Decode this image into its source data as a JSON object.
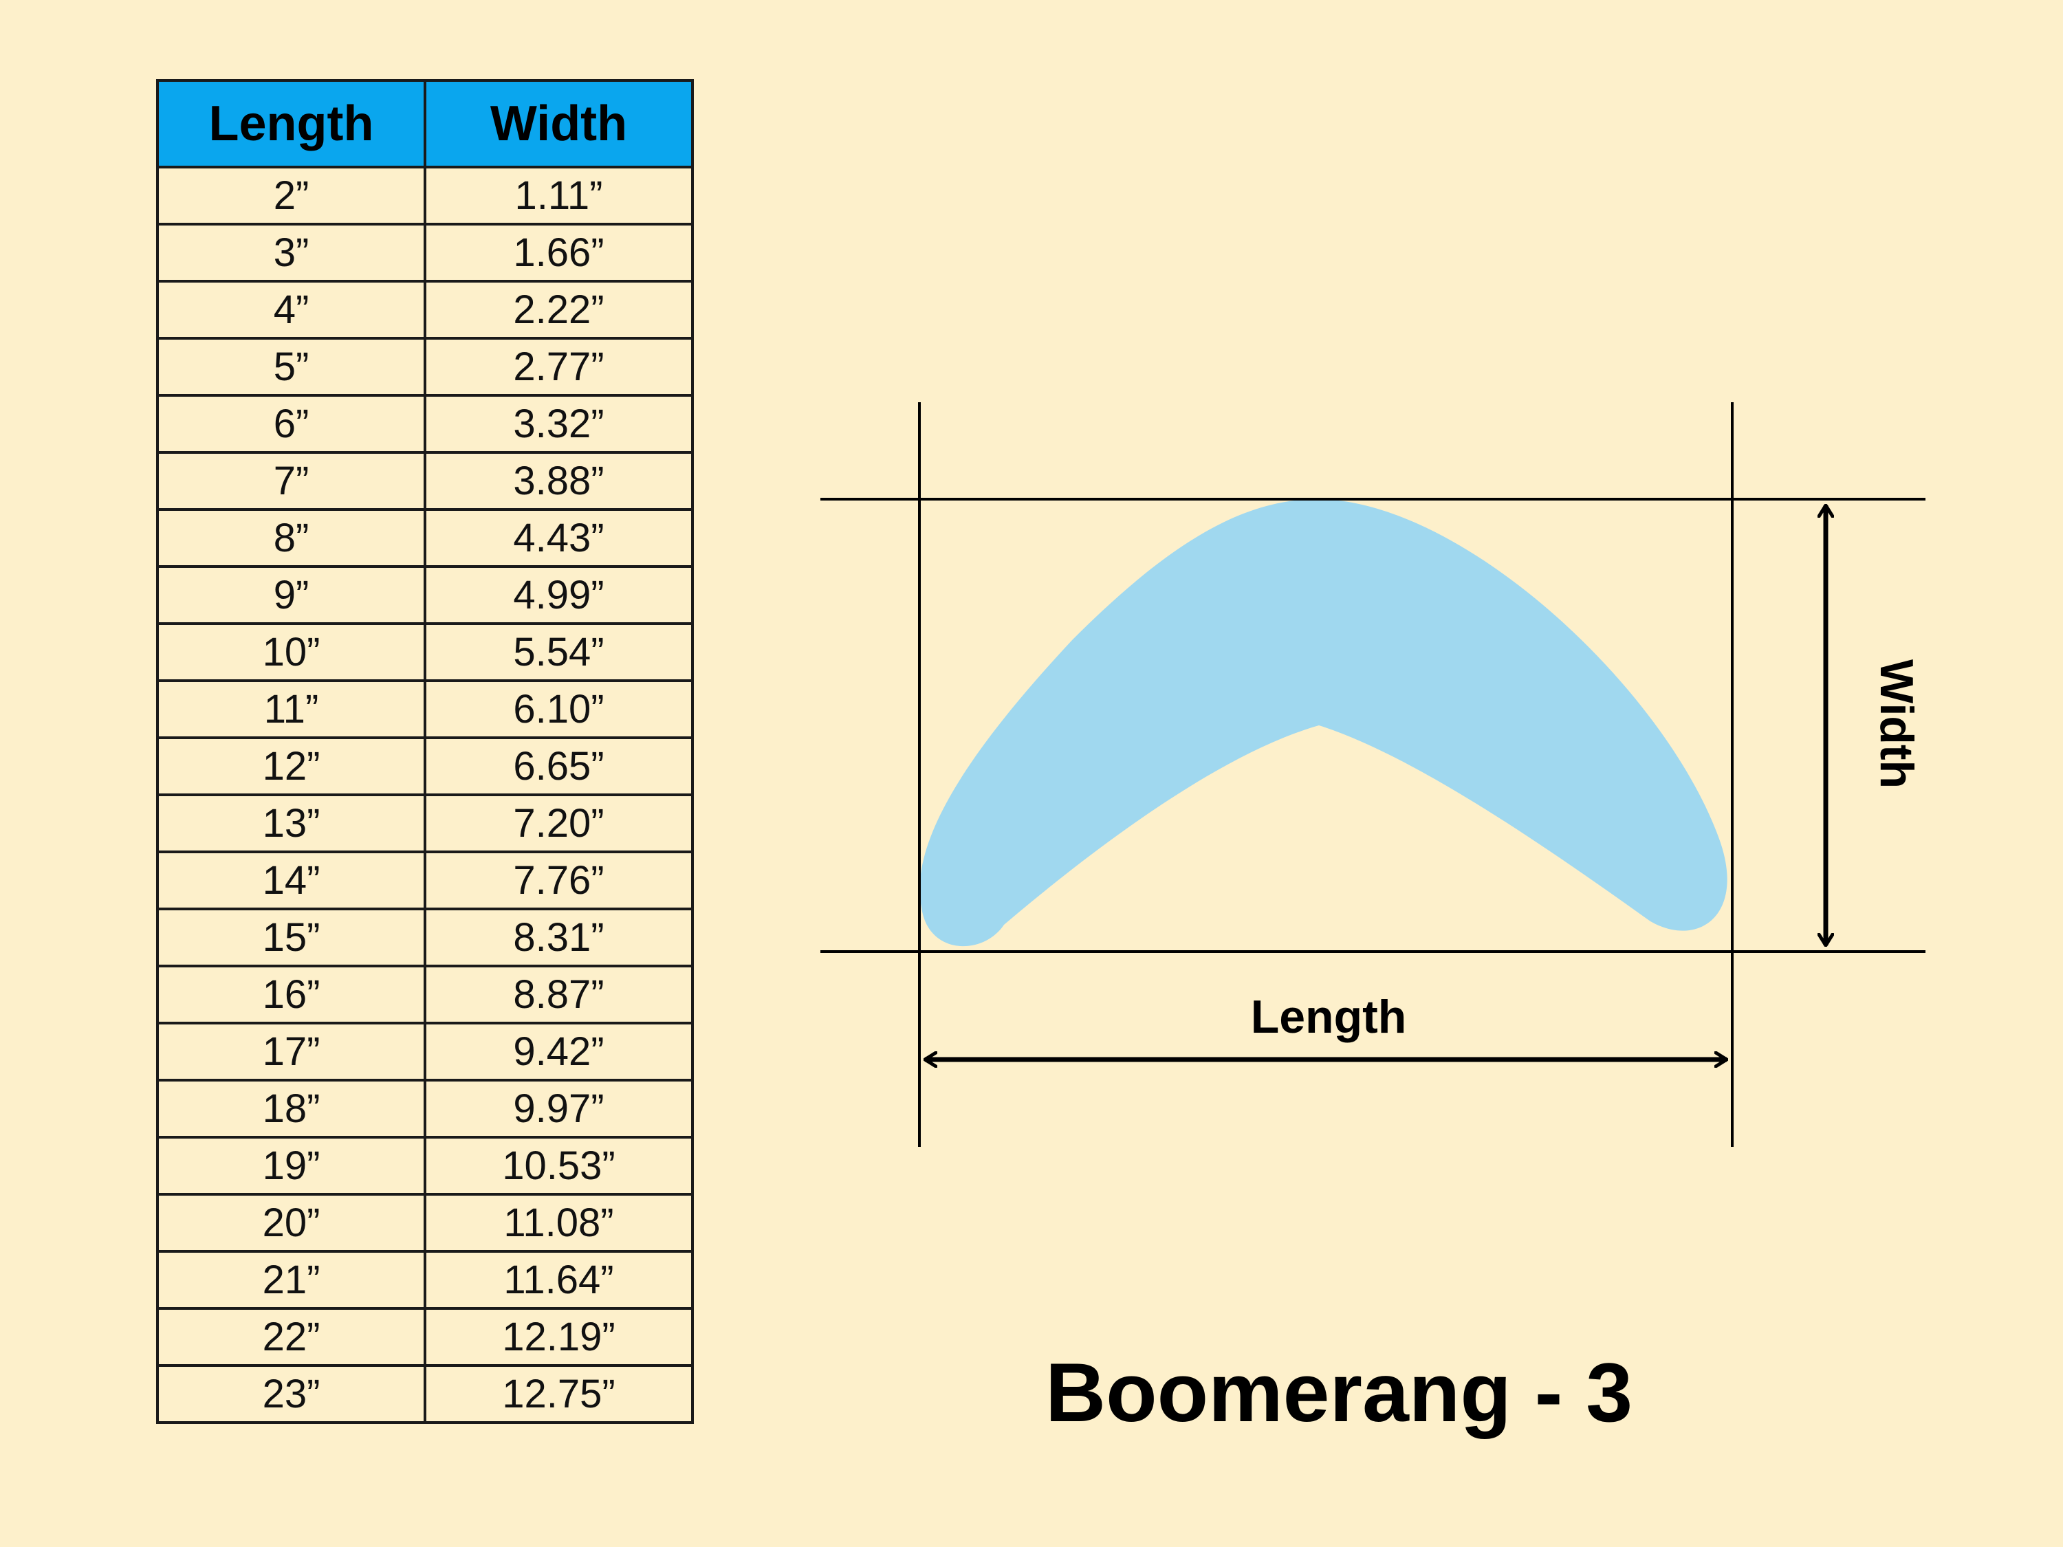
{
  "table": {
    "headers": [
      "Length",
      "Width"
    ],
    "header_color": "#0aa6ee",
    "rows": [
      [
        "2”",
        "1.11”"
      ],
      [
        "3”",
        "1.66”"
      ],
      [
        "4”",
        "2.22”"
      ],
      [
        "5”",
        "2.77”"
      ],
      [
        "6”",
        "3.32”"
      ],
      [
        "7”",
        "3.88”"
      ],
      [
        "8”",
        "4.43”"
      ],
      [
        "9”",
        "4.99”"
      ],
      [
        "10”",
        "5.54”"
      ],
      [
        "11”",
        "6.10”"
      ],
      [
        "12”",
        "6.65”"
      ],
      [
        "13”",
        "7.20”"
      ],
      [
        "14”",
        "7.76”"
      ],
      [
        "15”",
        "8.31”"
      ],
      [
        "16”",
        "8.87”"
      ],
      [
        "17”",
        "9.42”"
      ],
      [
        "18”",
        "9.97”"
      ],
      [
        "19”",
        "10.53”"
      ],
      [
        "20”",
        "11.08”"
      ],
      [
        "21”",
        "11.64”"
      ],
      [
        "22”",
        "12.19”"
      ],
      [
        "23”",
        "12.75”"
      ]
    ]
  },
  "diagram": {
    "length_label": "Length",
    "width_label": "Width",
    "boomerang_color": "#a0d8ef",
    "background_color": "#fdf0cb"
  },
  "title": "Boomerang - 3"
}
